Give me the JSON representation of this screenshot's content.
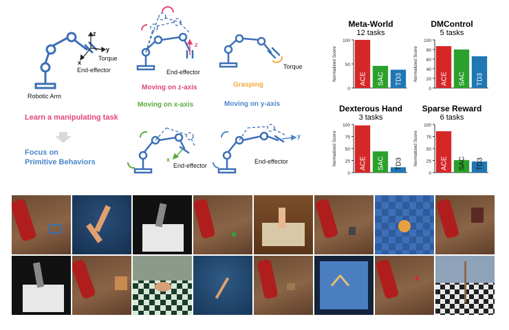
{
  "diagram": {
    "robot_labels": {
      "z": "z",
      "y": "y",
      "x": "x",
      "torque": "Torque",
      "end_effector": "End-effector",
      "robotic_arm": "Robotic Arm"
    },
    "panels": {
      "z_axis": {
        "caption": "Moving on z-axis",
        "end_effector": "End-effector",
        "axis": "z"
      },
      "grasping": {
        "caption": "Grasping",
        "torque": "Torque"
      },
      "x_axis": {
        "caption": "Moving on x-axis",
        "end_effector": "End-effector",
        "axis": "x"
      },
      "y_axis": {
        "caption": "Moving on y-axis",
        "end_effector": "End-effector",
        "axis": "y"
      }
    },
    "learn_task": "Learn a manipulating task",
    "focus_line1": "Focus on",
    "focus_line2": "Primitive Behaviors"
  },
  "colors": {
    "pink": "#e0457b",
    "green": "#5aab3c",
    "orange": "#f2a93b",
    "blue": "#4a86c8",
    "arm_blue": "#3b6fb6",
    "ace": "#d62728",
    "sac": "#2ca02c",
    "td3": "#1f77b4"
  },
  "chart_data": [
    {
      "type": "bar",
      "title": "Meta-World",
      "subtitle": "12 tasks",
      "ylabel": "Normalized Score",
      "ylim": [
        0,
        100
      ],
      "yticks": [
        0,
        50,
        100
      ],
      "categories": [
        "ACE",
        "SAC",
        "TD3"
      ],
      "values": [
        100,
        46,
        38
      ]
    },
    {
      "type": "bar",
      "title": "DMControl",
      "subtitle": "5 tasks",
      "ylabel": "Normalized Score",
      "ylim": [
        0,
        100
      ],
      "yticks": [
        0,
        20,
        40,
        60,
        80,
        100
      ],
      "categories": [
        "ACE",
        "SAC",
        "TD3"
      ],
      "values": [
        87,
        80,
        66
      ]
    },
    {
      "type": "bar",
      "title": "Dexterous Hand",
      "subtitle": "3 tasks",
      "ylabel": "Normalized Score",
      "ylim": [
        0,
        100
      ],
      "yticks": [
        0,
        25,
        50,
        75,
        100
      ],
      "categories": [
        "ACE",
        "SAC",
        "TD3"
      ],
      "values": [
        98,
        44,
        11
      ]
    },
    {
      "type": "bar",
      "title": "Sparse Reward",
      "subtitle": "6 tasks",
      "ylabel": "Normalized Score",
      "ylim": [
        0,
        100
      ],
      "yticks": [
        0,
        25,
        50,
        75,
        100
      ],
      "categories": [
        "ACE",
        "SAC",
        "TD3"
      ],
      "values": [
        86,
        26,
        23
      ]
    }
  ],
  "thumbnails": {
    "row1": [
      "metaworld-sawyer-box",
      "dmc-walker-blue",
      "dmc-jaco-white-table",
      "metaworld-sawyer-pegs",
      "adroit-hand-table",
      "metaworld-sawyer-mug",
      "dmc-quadruped-checker-blue",
      "metaworld-sawyer-bin"
    ],
    "row2": [
      "dmc-jaco-green-dot",
      "metaworld-sawyer-drawer",
      "dmc-quadruped-checker-green",
      "dmc-swimmer-blue",
      "metaworld-sawyer-button",
      "dmc-reacher-blue",
      "metaworld-sawyer-reach",
      "dmc-cartpole-checker"
    ]
  }
}
